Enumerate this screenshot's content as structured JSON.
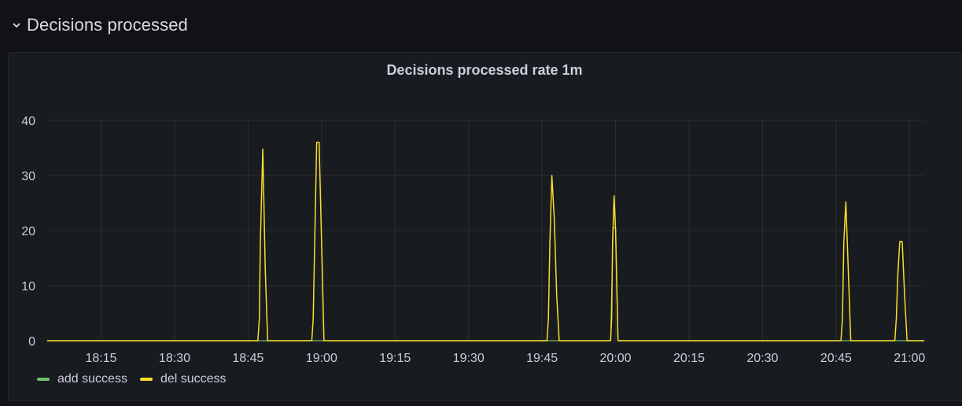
{
  "row": {
    "title": "Decisions processed",
    "icon": "chevron-down-icon"
  },
  "panel": {
    "title": "Decisions processed rate 1m"
  },
  "colors": {
    "add_success": "#73bf69",
    "del_success": "#fade2a",
    "grid": "#2c2e33",
    "axis_text": "#ccccdc"
  },
  "chart_data": {
    "type": "line",
    "title": "Decisions processed rate 1m",
    "xlabel": "",
    "ylabel": "",
    "ylim": [
      0,
      40
    ],
    "yticks": [
      0,
      10,
      20,
      30,
      40
    ],
    "xticks": [
      "18:15",
      "18:30",
      "18:45",
      "19:00",
      "19:15",
      "19:30",
      "19:45",
      "20:00",
      "20:15",
      "20:30",
      "20:45",
      "21:00"
    ],
    "xlim": [
      "18:04",
      "21:03"
    ],
    "grid": true,
    "legend": "bottom-left",
    "series": [
      {
        "name": "add success",
        "color": "#73bf69",
        "points": [
          [
            "18:04",
            0
          ],
          [
            "19:59",
            0
          ],
          [
            "19:59.5",
            20.5
          ],
          [
            "20:00",
            20.5
          ],
          [
            "20:00.5",
            0
          ],
          [
            "21:03",
            0
          ]
        ]
      },
      {
        "name": "del success",
        "color": "#fade2a",
        "points": [
          [
            "18:04",
            0
          ],
          [
            "18:47",
            0
          ],
          [
            "18:47.3",
            4
          ],
          [
            "18:47.5",
            18
          ],
          [
            "18:48",
            34.8
          ],
          [
            "18:48.5",
            13
          ],
          [
            "18:49",
            0
          ],
          [
            "18:58",
            0
          ],
          [
            "18:58.3",
            4
          ],
          [
            "18:58.6",
            18
          ],
          [
            "18:59",
            36
          ],
          [
            "18:59.5",
            36
          ],
          [
            "19:00",
            18
          ],
          [
            "19:00.5",
            0
          ],
          [
            "19:46",
            0
          ],
          [
            "19:46.3",
            4
          ],
          [
            "19:46.6",
            18
          ],
          [
            "19:47",
            30
          ],
          [
            "19:47.5",
            22
          ],
          [
            "19:48",
            8
          ],
          [
            "19:48.5",
            0
          ],
          [
            "19:59",
            0
          ],
          [
            "19:59.2",
            4
          ],
          [
            "19:59.4",
            18
          ],
          [
            "19:59.7",
            26.3
          ],
          [
            "20:00",
            20
          ],
          [
            "20:00.5",
            0
          ],
          [
            "20:46",
            0
          ],
          [
            "20:46.3",
            4
          ],
          [
            "20:46.6",
            18
          ],
          [
            "20:47",
            25.2
          ],
          [
            "20:47.5",
            13
          ],
          [
            "20:48",
            0
          ],
          [
            "20:57",
            0
          ],
          [
            "20:57.3",
            4
          ],
          [
            "20:57.6",
            12
          ],
          [
            "20:58",
            18
          ],
          [
            "20:58.5",
            18
          ],
          [
            "20:59",
            8
          ],
          [
            "20:59.5",
            0
          ],
          [
            "21:03",
            0
          ]
        ]
      }
    ]
  },
  "legend": {
    "items": [
      {
        "label": "add success",
        "color": "#73bf69"
      },
      {
        "label": "del success",
        "color": "#fade2a"
      }
    ]
  }
}
